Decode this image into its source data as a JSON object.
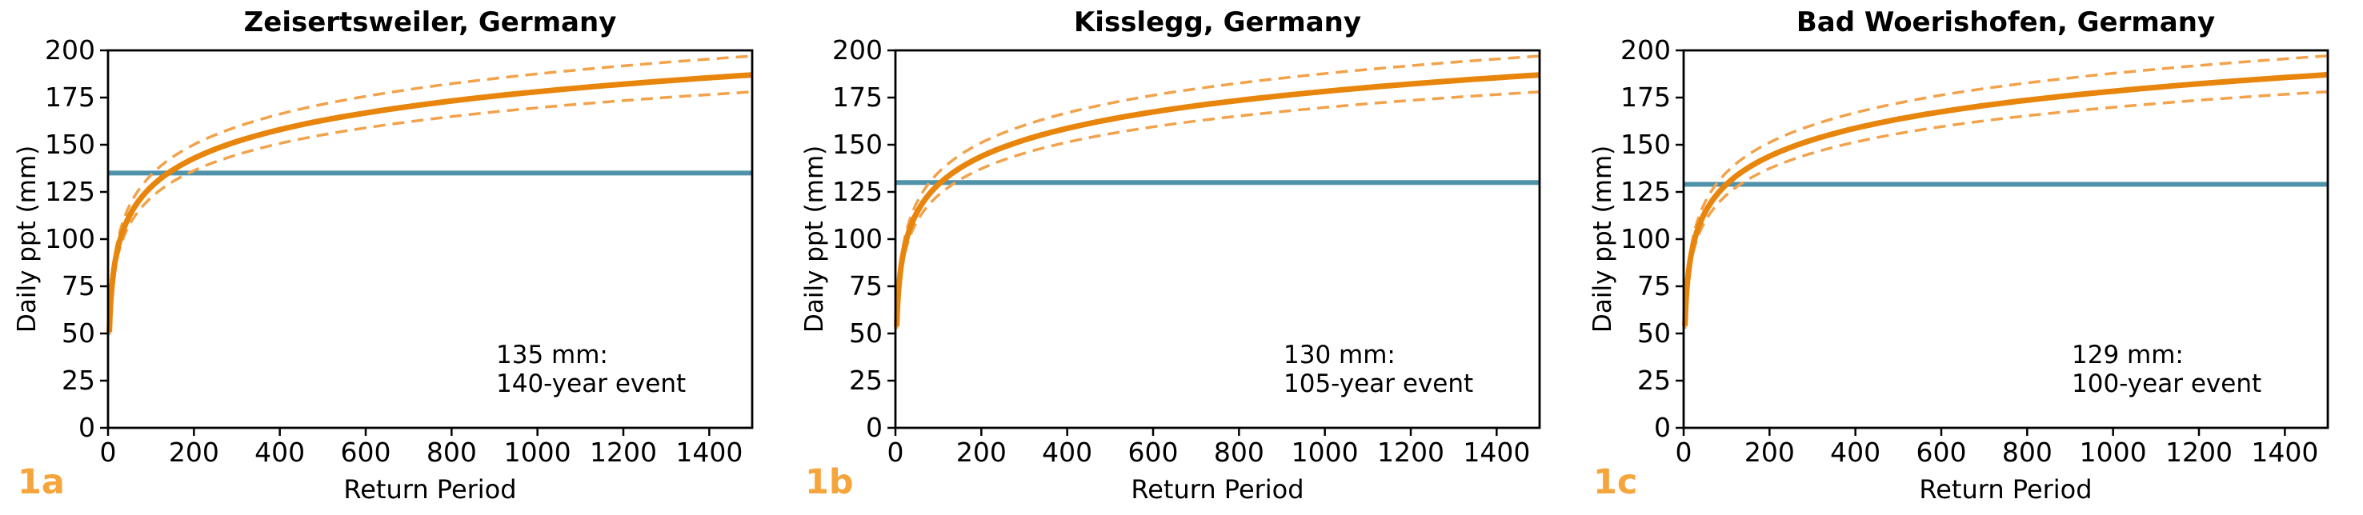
{
  "figure": {
    "background": "#ffffff",
    "colors": {
      "curve": "#E8850C",
      "ci": "#F2A24A",
      "threshold_line": "#4F93AB",
      "letter": "#F6A53C",
      "axis": "#000000"
    },
    "panels": [
      {
        "letter": "1a"
      },
      {
        "letter": "1b"
      },
      {
        "letter": "1c"
      }
    ]
  },
  "chart_data": [
    {
      "type": "line",
      "title": "Zeisertsweiler, Germany",
      "xlabel": "Return Period",
      "ylabel": "Daily ppt (mm)",
      "xlim": [
        0,
        1500
      ],
      "ylim": [
        0,
        200
      ],
      "xticks": [
        0,
        200,
        400,
        600,
        800,
        1000,
        1200,
        1400
      ],
      "yticks": [
        0,
        25,
        50,
        75,
        100,
        125,
        150,
        175,
        200
      ],
      "grid": false,
      "legend": "none",
      "x": [
        3,
        5,
        8,
        12,
        20,
        30,
        50,
        80,
        120,
        200,
        300,
        450,
        650,
        900,
        1200,
        1500
      ],
      "series": [
        {
          "name": "ci-upper",
          "style": "dashed",
          "y": [
            52.2,
            64.1,
            75.0,
            84.5,
            96.4,
            105.9,
            117.8,
            128.7,
            138.2,
            150.1,
            159.5,
            169.0,
            177.5,
            185.1,
            191.8,
            197.0
          ]
        },
        {
          "name": "ci-lower",
          "style": "dashed",
          "y": [
            49.3,
            59.9,
            69.6,
            78.0,
            88.6,
            97.0,
            107.6,
            117.3,
            125.7,
            136.3,
            144.7,
            153.1,
            160.6,
            167.4,
            173.4,
            178.0
          ]
        },
        {
          "name": "return-level",
          "style": "solid",
          "y": [
            50.7,
            61.9,
            72.2,
            81.1,
            92.3,
            101.2,
            112.4,
            122.7,
            131.6,
            142.8,
            151.7,
            160.6,
            168.6,
            175.8,
            182.1,
            187.0
          ]
        }
      ],
      "threshold": {
        "value": 135,
        "return_period_years": 140,
        "annotation_line1": "135 mm:",
        "annotation_line2": "140-year event"
      }
    },
    {
      "type": "line",
      "title": "Kisslegg, Germany",
      "xlabel": "Return Period",
      "ylabel": "Daily ppt (mm)",
      "xlim": [
        0,
        1500
      ],
      "ylim": [
        0,
        200
      ],
      "xticks": [
        0,
        200,
        400,
        600,
        800,
        1000,
        1200,
        1400
      ],
      "yticks": [
        0,
        25,
        50,
        75,
        100,
        125,
        150,
        175,
        200
      ],
      "grid": false,
      "legend": "none",
      "x": [
        3,
        5,
        8,
        12,
        20,
        30,
        50,
        80,
        120,
        200,
        300,
        450,
        650,
        900,
        1200,
        1500
      ],
      "series": [
        {
          "name": "ci-upper",
          "style": "dashed",
          "y": [
            55.3,
            66.9,
            77.6,
            86.9,
            98.5,
            107.8,
            119.5,
            130.2,
            139.4,
            151.1,
            160.3,
            169.6,
            178.0,
            185.3,
            191.9,
            197.0
          ]
        },
        {
          "name": "ci-lower",
          "style": "dashed",
          "y": [
            52.4,
            62.7,
            72.2,
            80.4,
            90.7,
            98.9,
            109.3,
            118.8,
            126.9,
            137.3,
            145.5,
            153.7,
            161.1,
            167.6,
            173.5,
            178.0
          ]
        },
        {
          "name": "return-level",
          "style": "solid",
          "y": [
            53.8,
            64.7,
            74.8,
            83.5,
            94.4,
            103.1,
            114.1,
            124.2,
            132.8,
            143.8,
            152.5,
            161.2,
            169.1,
            176.0,
            182.2,
            187.0
          ]
        }
      ],
      "threshold": {
        "value": 130,
        "return_period_years": 105,
        "annotation_line1": "130 mm:",
        "annotation_line2": "105-year event"
      }
    },
    {
      "type": "line",
      "title": "Bad Woerishofen, Germany",
      "xlabel": "Return Period",
      "ylabel": "Daily ppt (mm)",
      "xlim": [
        0,
        1500
      ],
      "ylim": [
        0,
        200
      ],
      "xticks": [
        0,
        200,
        400,
        600,
        800,
        1000,
        1200,
        1400
      ],
      "yticks": [
        0,
        25,
        50,
        75,
        100,
        125,
        150,
        175,
        200
      ],
      "grid": false,
      "legend": "none",
      "x": [
        3,
        5,
        8,
        12,
        20,
        30,
        50,
        80,
        120,
        200,
        300,
        450,
        650,
        900,
        1200,
        1500
      ],
      "series": [
        {
          "name": "ci-upper",
          "style": "dashed",
          "y": [
            55.4,
            67.1,
            77.8,
            87.0,
            98.7,
            108.0,
            119.6,
            130.3,
            139.6,
            151.2,
            160.4,
            169.7,
            178.1,
            185.4,
            192.0,
            197.1
          ]
        },
        {
          "name": "ci-lower",
          "style": "dashed",
          "y": [
            52.5,
            62.9,
            72.4,
            80.5,
            90.9,
            99.1,
            109.4,
            118.9,
            127.1,
            137.4,
            145.6,
            153.8,
            161.2,
            167.7,
            173.6,
            178.1
          ]
        },
        {
          "name": "return-level",
          "style": "solid",
          "y": [
            53.9,
            64.9,
            75.0,
            83.6,
            94.6,
            103.3,
            114.2,
            124.3,
            133.0,
            143.9,
            152.6,
            161.3,
            169.2,
            176.1,
            182.3,
            187.1
          ]
        }
      ],
      "threshold": {
        "value": 129,
        "return_period_years": 100,
        "annotation_line1": "129 mm:",
        "annotation_line2": "100-year event"
      }
    }
  ]
}
